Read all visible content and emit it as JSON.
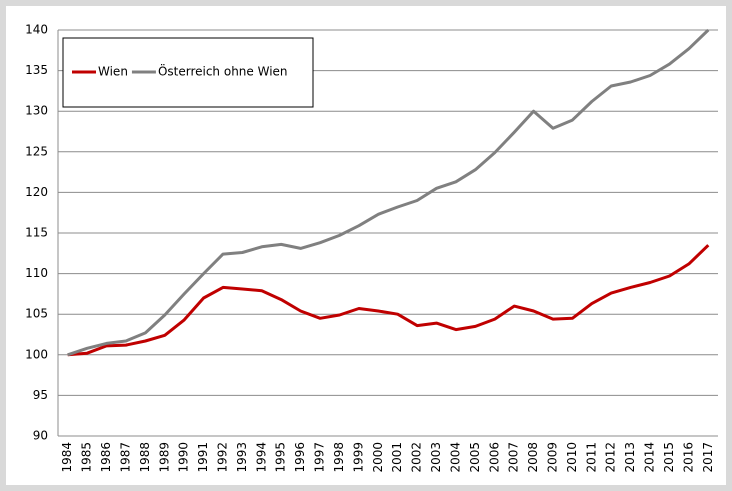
{
  "chart_data": {
    "type": "line",
    "categories": [
      "1984",
      "1985",
      "1986",
      "1987",
      "1988",
      "1989",
      "1990",
      "1991",
      "1992",
      "1993",
      "1994",
      "1995",
      "1996",
      "1997",
      "1998",
      "1999",
      "2000",
      "2001",
      "2002",
      "2003",
      "2004",
      "2005",
      "2006",
      "2007",
      "2008",
      "2009",
      "2010",
      "2011",
      "2012",
      "2013",
      "2014",
      "2015",
      "2016",
      "2017"
    ],
    "series": [
      {
        "name": "Wien",
        "color": "#c00000",
        "values": [
          100,
          100.2,
          101.1,
          101.2,
          101.7,
          102.4,
          104.3,
          107.0,
          108.3,
          108.1,
          107.9,
          106.8,
          105.4,
          104.5,
          104.9,
          105.7,
          105.4,
          105.0,
          103.6,
          103.9,
          103.1,
          103.5,
          104.4,
          106.0,
          105.4,
          104.4,
          104.5,
          106.3,
          107.6,
          108.3,
          108.9,
          109.7,
          111.2,
          113.5
        ]
      },
      {
        "name": "Österreich ohne Wien",
        "color": "#808080",
        "values": [
          100,
          100.8,
          101.4,
          101.7,
          102.7,
          104.9,
          107.5,
          110.0,
          112.4,
          112.6,
          113.3,
          113.6,
          113.1,
          113.8,
          114.7,
          115.9,
          117.3,
          118.2,
          119.0,
          120.5,
          121.3,
          122.8,
          124.9,
          127.4,
          130.0,
          127.9,
          128.9,
          131.2,
          133.1,
          133.6,
          134.4,
          135.8,
          137.7,
          140.0
        ]
      }
    ],
    "ylim": [
      90,
      140
    ],
    "yticks": [
      90,
      95,
      100,
      105,
      110,
      115,
      120,
      125,
      130,
      135,
      140
    ],
    "grid": true,
    "legend": "upper-left"
  }
}
